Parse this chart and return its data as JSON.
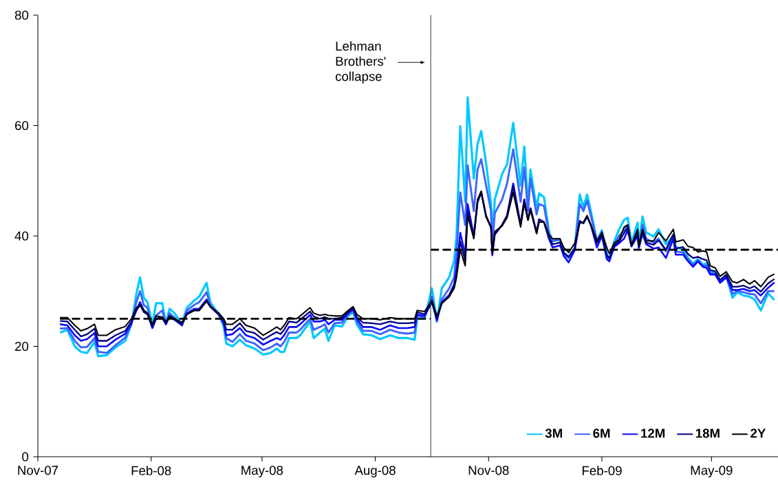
{
  "chart_data": {
    "type": "line",
    "x": [
      "2007-11-19",
      "2007-11-25",
      "2007-12-01",
      "2007-12-06",
      "2007-12-11",
      "2007-12-17",
      "2007-12-20",
      "2007-12-27",
      "2008-01-03",
      "2008-01-11",
      "2008-01-16",
      "2008-01-20",
      "2008-01-23",
      "2008-01-26",
      "2008-01-29",
      "2008-02-02",
      "2008-02-05",
      "2008-02-10",
      "2008-02-13",
      "2008-02-16",
      "2008-02-20",
      "2008-02-26",
      "2008-03-01",
      "2008-03-07",
      "2008-03-11",
      "2008-03-17",
      "2008-03-20",
      "2008-03-27",
      "2008-03-31",
      "2008-04-02",
      "2008-04-07",
      "2008-04-13",
      "2008-04-18",
      "2008-04-25",
      "2008-05-02",
      "2008-05-08",
      "2008-05-13",
      "2008-05-16",
      "2008-05-19",
      "2008-05-23",
      "2008-05-29",
      "2008-06-01",
      "2008-06-09",
      "2008-06-12",
      "2008-06-17",
      "2008-06-21",
      "2008-06-24",
      "2008-06-29",
      "2008-07-05",
      "2008-07-10",
      "2008-07-14",
      "2008-07-17",
      "2008-07-22",
      "2008-07-29",
      "2008-08-05",
      "2008-08-13",
      "2008-08-20",
      "2008-08-27",
      "2008-09-02",
      "2008-09-04",
      "2008-09-10",
      "2008-09-16",
      "2008-09-20",
      "2008-09-24",
      "2008-09-30",
      "2008-10-04",
      "2008-10-06",
      "2008-10-09",
      "2008-10-13",
      "2008-10-15",
      "2008-10-20",
      "2008-10-23",
      "2008-10-26",
      "2008-10-30",
      "2008-11-03",
      "2008-11-04",
      "2008-11-06",
      "2008-11-12",
      "2008-11-16",
      "2008-11-21",
      "2008-11-27",
      "2008-11-30",
      "2008-12-03",
      "2008-12-05",
      "2008-12-10",
      "2008-12-12",
      "2008-12-16",
      "2008-12-20",
      "2008-12-23",
      "2008-12-29",
      "2009-01-01",
      "2009-01-05",
      "2009-01-10",
      "2009-01-14",
      "2009-01-17",
      "2009-01-20",
      "2009-01-23",
      "2009-01-28",
      "2009-02-01",
      "2009-02-05",
      "2009-02-07",
      "2009-02-11",
      "2009-02-15",
      "2009-02-19",
      "2009-02-22",
      "2009-02-25",
      "2009-03-02",
      "2009-03-03",
      "2009-03-06",
      "2009-03-09",
      "2009-03-15",
      "2009-03-19",
      "2009-03-25",
      "2009-03-31",
      "2009-04-02",
      "2009-04-08",
      "2009-04-12",
      "2009-04-16",
      "2009-04-20",
      "2009-04-24",
      "2009-04-27",
      "2009-04-30",
      "2009-05-04",
      "2009-05-08",
      "2009-05-13",
      "2009-05-18",
      "2009-05-22",
      "2009-05-27",
      "2009-06-01",
      "2009-06-05",
      "2009-06-10",
      "2009-06-16",
      "2009-06-21"
    ],
    "series": [
      {
        "name": "3M",
        "color": "#00c8ff",
        "values": [
          22.5,
          23.0,
          20.0,
          19.0,
          18.8,
          20.8,
          18.2,
          18.4,
          19.8,
          21.0,
          24.0,
          29.5,
          32.5,
          28.8,
          28.0,
          24.0,
          27.8,
          27.8,
          24.2,
          26.8,
          26.0,
          24.0,
          27.0,
          28.3,
          29.0,
          31.5,
          28.0,
          25.8,
          23.5,
          20.5,
          20.0,
          21.2,
          20.2,
          19.6,
          18.5,
          18.8,
          19.6,
          19.0,
          19.0,
          21.5,
          21.5,
          22.0,
          24.5,
          21.5,
          22.5,
          23.2,
          21.0,
          23.8,
          23.6,
          25.5,
          26.2,
          24.0,
          22.2,
          22.0,
          21.3,
          22.0,
          21.5,
          21.5,
          21.2,
          25.0,
          25.0,
          30.5,
          24.5,
          30.5,
          32.5,
          35.5,
          40.0,
          59.9,
          46.2,
          65.1,
          50.4,
          56.6,
          59.0,
          53.2,
          45.8,
          39.0,
          46.6,
          51.2,
          53.0,
          60.5,
          49.1,
          56.2,
          45.4,
          52.0,
          45.0,
          47.7,
          47.0,
          40.8,
          39.1,
          39.3,
          37.0,
          36.2,
          37.8,
          47.5,
          45.2,
          47.5,
          44.5,
          39.1,
          41.0,
          36.8,
          35.6,
          39.0,
          41.2,
          42.9,
          43.3,
          38.7,
          42.4,
          38.5,
          43.5,
          40.6,
          39.9,
          41.2,
          38.5,
          40.0,
          38.0,
          37.5,
          36.0,
          35.0,
          35.8,
          34.8,
          35.0,
          33.5,
          33.5,
          31.8,
          32.8,
          28.8,
          29.8,
          29.2,
          29.0,
          28.5,
          26.5,
          29.6,
          28.4
        ]
      },
      {
        "name": "6M",
        "color": "#3c64ff",
        "values": [
          23.2,
          23.3,
          21.0,
          19.8,
          19.9,
          21.5,
          19.0,
          18.8,
          20.2,
          21.6,
          24.0,
          28.0,
          30.0,
          27.5,
          27.0,
          23.5,
          25.6,
          26.5,
          24.0,
          26.0,
          25.2,
          23.8,
          26.5,
          27.5,
          28.0,
          29.8,
          27.5,
          25.8,
          24.0,
          21.5,
          20.8,
          22.2,
          21.0,
          20.5,
          19.3,
          19.8,
          20.5,
          20.0,
          20.8,
          22.5,
          22.5,
          23.0,
          25.0,
          23.0,
          23.5,
          24.0,
          22.5,
          24.2,
          24.3,
          25.8,
          26.5,
          24.5,
          22.8,
          22.8,
          22.2,
          23.0,
          22.5,
          22.3,
          22.5,
          25.5,
          25.3,
          29.0,
          24.5,
          28.5,
          30.5,
          32.5,
          37.0,
          47.9,
          42.0,
          52.8,
          44.5,
          52.0,
          53.9,
          49.1,
          44.5,
          38.0,
          44.1,
          46.6,
          49.5,
          55.7,
          46.2,
          52.4,
          44.5,
          50.4,
          43.9,
          45.8,
          45.4,
          40.4,
          39.1,
          39.3,
          36.8,
          36.0,
          37.8,
          45.8,
          44.5,
          46.4,
          43.7,
          39.1,
          40.8,
          36.2,
          35.5,
          38.5,
          40.0,
          41.0,
          42.0,
          38.5,
          41.0,
          38.0,
          42.0,
          39.5,
          38.8,
          39.5,
          37.2,
          39.8,
          37.2,
          37.0,
          35.7,
          34.7,
          35.6,
          34.6,
          34.6,
          33.2,
          33.2,
          31.6,
          32.6,
          29.5,
          30.0,
          29.8,
          29.5,
          29.4,
          27.8,
          30.0,
          30.0
        ]
      },
      {
        "name": "12M",
        "color": "#0a0aff",
        "values": [
          24.0,
          23.8,
          22.0,
          21.0,
          21.3,
          22.4,
          20.0,
          20.0,
          21.2,
          22.3,
          24.2,
          26.5,
          28.0,
          26.5,
          26.0,
          23.3,
          25.0,
          25.3,
          24.0,
          25.5,
          24.8,
          23.8,
          26.0,
          26.8,
          26.8,
          28.5,
          27.2,
          25.7,
          24.2,
          22.0,
          22.2,
          23.3,
          22.0,
          21.5,
          20.3,
          21.0,
          21.5,
          21.2,
          22.0,
          23.5,
          23.5,
          24.0,
          25.7,
          24.5,
          24.5,
          24.8,
          24.0,
          24.8,
          24.8,
          26.0,
          26.8,
          25.0,
          23.5,
          23.5,
          23.0,
          23.8,
          23.3,
          23.3,
          23.5,
          25.8,
          25.5,
          28.0,
          24.8,
          28.0,
          29.3,
          31.2,
          34.0,
          40.6,
          36.5,
          45.8,
          40.0,
          46.2,
          47.9,
          43.5,
          41.6,
          36.5,
          40.4,
          42.0,
          43.7,
          49.5,
          42.0,
          46.6,
          42.9,
          45.0,
          40.6,
          43.0,
          42.5,
          39.5,
          37.9,
          38.3,
          36.4,
          35.2,
          37.5,
          42.7,
          42.3,
          43.5,
          42.0,
          37.9,
          40.0,
          35.8,
          35.4,
          38.0,
          38.7,
          39.5,
          41.0,
          38.1,
          40.0,
          37.8,
          40.4,
          38.5,
          37.7,
          37.9,
          36.0,
          39.5,
          36.6,
          36.6,
          35.4,
          34.4,
          35.4,
          34.4,
          34.2,
          33.0,
          33.0,
          31.5,
          32.5,
          30.2,
          30.2,
          30.4,
          30.0,
          30.2,
          29.2,
          30.6,
          31.6
        ]
      },
      {
        "name": "18M",
        "color": "#000080",
        "values": [
          24.6,
          24.5,
          23.0,
          21.8,
          22.2,
          23.2,
          21.0,
          21.0,
          22.0,
          22.8,
          24.5,
          26.5,
          27.5,
          26.2,
          25.8,
          23.5,
          25.0,
          25.0,
          24.2,
          25.2,
          24.8,
          24.0,
          25.8,
          26.5,
          26.5,
          28.2,
          27.2,
          25.8,
          24.5,
          23.0,
          23.0,
          24.2,
          22.8,
          22.4,
          21.2,
          22.0,
          22.6,
          22.2,
          23.0,
          24.5,
          24.3,
          24.8,
          26.3,
          25.4,
          25.0,
          25.3,
          25.0,
          25.0,
          25.2,
          26.2,
          27.0,
          25.3,
          24.3,
          24.2,
          24.0,
          24.5,
          24.2,
          24.2,
          24.3,
          26.2,
          25.8,
          28.0,
          25.0,
          27.8,
          29.0,
          30.8,
          33.0,
          39.0,
          35.5,
          44.5,
          39.8,
          46.0,
          48.0,
          43.5,
          41.5,
          36.8,
          40.2,
          42.0,
          43.7,
          49.0,
          42.0,
          46.6,
          42.9,
          45.0,
          40.6,
          43.0,
          42.5,
          39.8,
          38.5,
          38.8,
          37.0,
          36.2,
          37.8,
          42.7,
          42.3,
          43.5,
          42.0,
          38.7,
          40.2,
          36.5,
          36.0,
          38.3,
          39.0,
          40.5,
          41.5,
          38.2,
          40.6,
          38.0,
          40.8,
          38.8,
          38.4,
          39.2,
          37.5,
          40.3,
          37.7,
          38.0,
          36.7,
          36.0,
          36.2,
          35.8,
          35.6,
          33.8,
          33.6,
          32.0,
          33.0,
          30.8,
          30.8,
          31.0,
          30.5,
          30.9,
          29.9,
          31.4,
          32.2
        ]
      },
      {
        "name": "2Y",
        "color": "#000000",
        "values": [
          25.2,
          25.2,
          23.8,
          22.8,
          23.2,
          24.0,
          22.0,
          22.0,
          23.0,
          23.6,
          25.0,
          27.0,
          27.5,
          26.5,
          26.0,
          24.0,
          25.5,
          25.3,
          24.5,
          25.5,
          25.0,
          24.3,
          25.8,
          26.5,
          26.5,
          28.2,
          27.2,
          26.0,
          25.0,
          24.0,
          24.0,
          25.0,
          23.8,
          23.3,
          22.0,
          22.8,
          23.5,
          23.0,
          23.8,
          25.2,
          25.0,
          25.5,
          27.0,
          26.0,
          25.6,
          25.8,
          25.6,
          25.5,
          25.5,
          26.5,
          27.2,
          25.8,
          25.0,
          25.0,
          24.8,
          25.2,
          25.0,
          25.0,
          25.0,
          26.5,
          26.3,
          28.3,
          25.5,
          27.8,
          29.0,
          30.5,
          32.5,
          37.5,
          34.6,
          43.7,
          39.5,
          46.6,
          48.1,
          43.7,
          41.6,
          37.0,
          40.8,
          41.8,
          43.3,
          47.9,
          41.6,
          45.8,
          42.9,
          44.7,
          40.4,
          42.5,
          42.5,
          40.2,
          39.5,
          39.5,
          37.9,
          37.0,
          38.7,
          42.3,
          42.5,
          43.7,
          42.0,
          39.1,
          40.6,
          37.9,
          36.8,
          38.7,
          39.3,
          41.6,
          42.0,
          38.3,
          41.2,
          38.3,
          41.2,
          39.1,
          39.1,
          40.6,
          39.1,
          41.2,
          38.9,
          39.3,
          38.1,
          37.9,
          37.1,
          37.3,
          37.1,
          34.6,
          34.2,
          32.7,
          33.5,
          31.7,
          31.5,
          32.1,
          31.3,
          31.9,
          30.8,
          32.5,
          33.1
        ]
      },
      {
        "type": "line",
        "color": "#000000",
        "line_style": "dashed",
        "x": [
          "2007-11-19",
          "2008-09-15"
        ],
        "values": [
          25,
          25
        ]
      },
      {
        "type": "line",
        "color": "#000000",
        "line_style": "dashed",
        "x": [
          "2008-09-15",
          "2009-06-24"
        ],
        "values": [
          37.5,
          37.5
        ]
      }
    ],
    "xlim": [
      "2007-11-01",
      "2009-06-24"
    ],
    "xticks": [
      {
        "value": "2007-11-01",
        "label": "Nov-07"
      },
      {
        "value": "2008-02-01",
        "label": "Feb-08"
      },
      {
        "value": "2008-05-01",
        "label": "May-08"
      },
      {
        "value": "2008-08-01",
        "label": "Aug-08"
      },
      {
        "value": "2008-11-01",
        "label": "Nov-08"
      },
      {
        "value": "2009-02-01",
        "label": "Feb-09"
      },
      {
        "value": "2009-05-01",
        "label": "May-09"
      }
    ],
    "ylim": [
      0,
      80
    ],
    "yticks": [
      0,
      20,
      40,
      60,
      80
    ],
    "ref_lines": [
      {
        "axis": "x",
        "value": "2008-09-15",
        "color": "#404040"
      }
    ],
    "annotations": [
      "Lehman Brothers' collapse"
    ],
    "legend": "bottom right",
    "line_style": "solid"
  }
}
